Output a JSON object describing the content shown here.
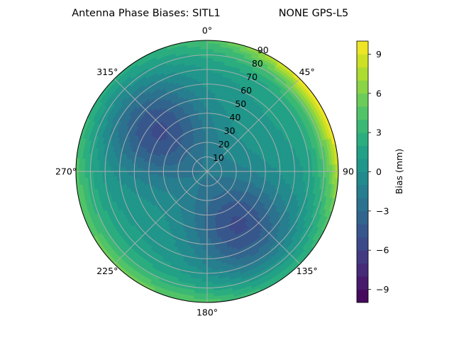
{
  "chart_data": {
    "type": "polar-contour",
    "title": "Antenna Phase Biases: SITL1",
    "subtitle": "NONE GPS-L5",
    "angular_ticks": [
      "0°",
      "45°",
      "90",
      "135°",
      "180°",
      "225°",
      "270°",
      "315°"
    ],
    "radial_ticks": [
      "10",
      "20",
      "30",
      "40",
      "50",
      "60",
      "70",
      "80",
      "90"
    ],
    "radial_tick_values": [
      10,
      20,
      30,
      40,
      50,
      60,
      70,
      80,
      90
    ],
    "angular_tick_values": [
      0,
      45,
      90,
      135,
      180,
      225,
      270,
      315
    ],
    "radial_range": [
      0,
      90
    ],
    "theta_zero": "top",
    "theta_direction": "clockwise",
    "grid": true,
    "colormap": "viridis",
    "colorbar": {
      "label": "Bias (mm)",
      "range": [
        -10,
        10
      ],
      "ticks": [
        -9,
        -6,
        -3,
        0,
        3,
        6,
        9
      ],
      "tick_labels": [
        "−9",
        "−6",
        "−3",
        "0",
        "3",
        "6",
        "9"
      ],
      "levels": 20
    },
    "field_features": [
      {
        "region": "center",
        "azimuth": 0,
        "zenith": 0,
        "bias": 1.5
      },
      {
        "region": "low-bias pocket",
        "azimuth": 310,
        "zenith": 45,
        "bias": -5
      },
      {
        "region": "low-bias pocket",
        "azimuth": 150,
        "zenith": 45,
        "bias": -5
      },
      {
        "region": "edge high",
        "azimuth": 60,
        "zenith": 90,
        "bias": 9
      },
      {
        "region": "edge moderate",
        "azimuth": 220,
        "zenith": 90,
        "bias": 4
      }
    ]
  }
}
